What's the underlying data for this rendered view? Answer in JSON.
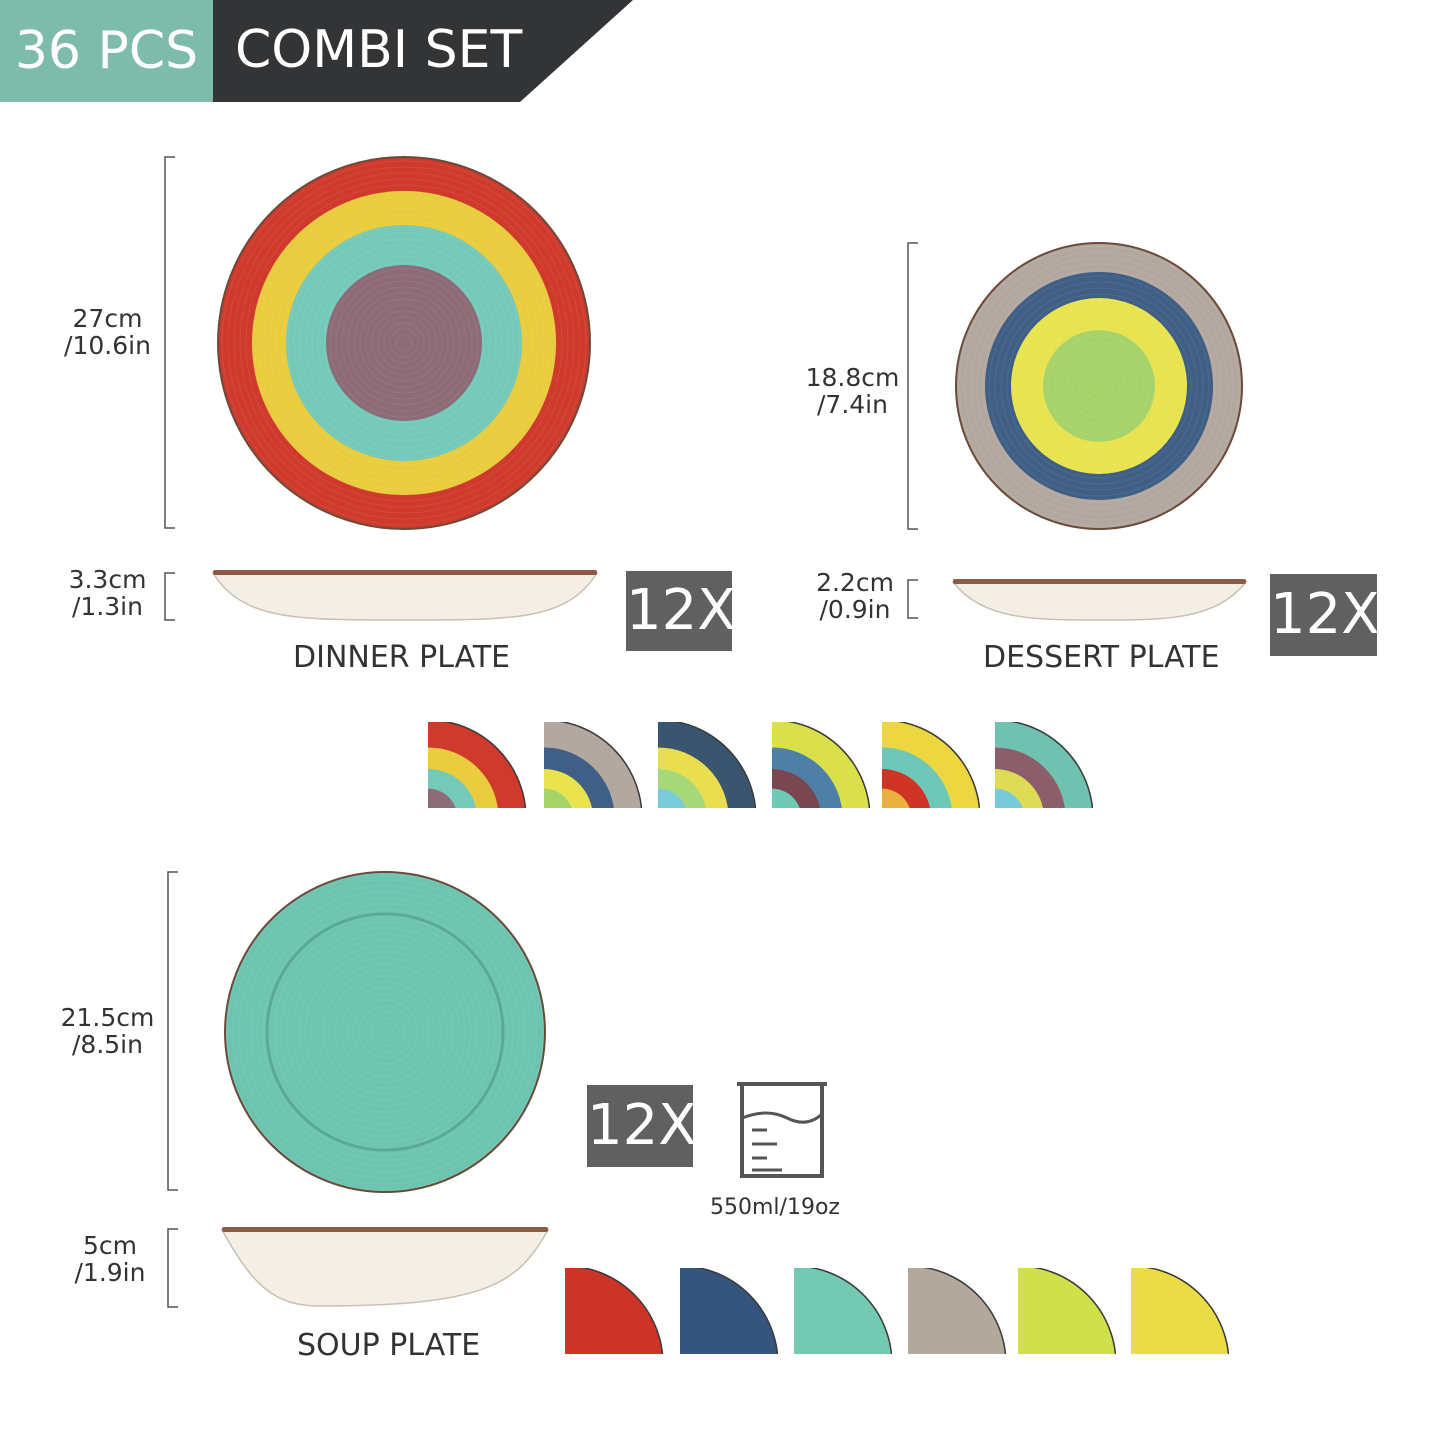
{
  "header": {
    "count": "36 PCS",
    "title": "COMBI SET",
    "accent": "#7dbcab",
    "dark": "#333436"
  },
  "dinner_plate": {
    "name": "DINNER PLATE",
    "quantity": "12X",
    "diameter": [
      "27cm",
      "/10.6in"
    ],
    "height": [
      "3.3cm",
      "/1.3in"
    ],
    "rings": [
      "#cf3a2c",
      "#e9cd3f",
      "#74c9b9",
      "#8d6b77"
    ]
  },
  "dessert_plate": {
    "name": "DESSERT PLATE",
    "quantity": "12X",
    "diameter": [
      "18.8cm",
      "/7.4in"
    ],
    "height": [
      "2.2cm",
      "/0.9in"
    ],
    "rings": [
      "#b3a89f",
      "#3f5f86",
      "#e8e34f",
      "#a6d36a"
    ]
  },
  "plate_variants": [
    [
      "#cf3a2c",
      "#e9cd3f",
      "#74c9b9",
      "#8d6b77"
    ],
    [
      "#b3a89f",
      "#3f5f86",
      "#e8e34f",
      "#a6d36a"
    ],
    [
      "#3a5570",
      "#e8de4f",
      "#a6d87a",
      "#78cbd9"
    ],
    [
      "#d9e04a",
      "#4e7fa6",
      "#7a4650",
      "#6fcab5"
    ],
    [
      "#ecd740",
      "#6fc7b7",
      "#cf3325",
      "#eab13c"
    ],
    [
      "#6fc2b0",
      "#8c5e6c",
      "#dedb55",
      "#79cad8"
    ]
  ],
  "soup_plate": {
    "name": "SOUP PLATE",
    "quantity": "12X",
    "diameter": [
      "21.5cm",
      "/8.5in"
    ],
    "height": [
      "5cm",
      "/1.9in"
    ],
    "capacity": "550ml/19oz",
    "color": "#6dc4b0"
  },
  "soup_variants": [
    "#cc3427",
    "#36557c",
    "#74c9b3",
    "#b3a89c",
    "#cfe04b",
    "#ebdc45"
  ]
}
